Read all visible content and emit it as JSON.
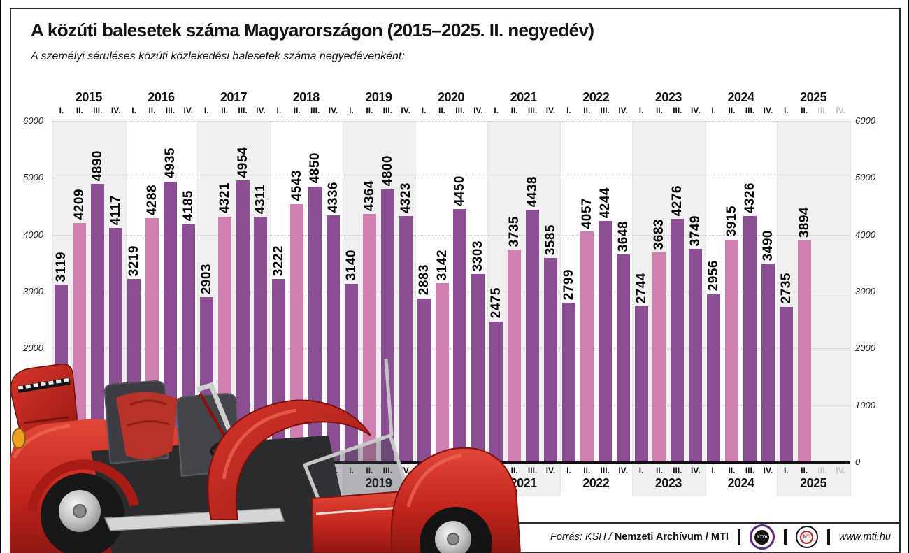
{
  "title": "A közúti balesetek száma Magyarországon (2015–2025. II. negyedév)",
  "subtitle": "A személyi sérüléses közúti közlekedési balesetek száma negyedévenként:",
  "chart_data": {
    "type": "bar",
    "title": "A közúti balesetek száma Magyarországon (2015–2025. II. negyedév)",
    "subtitle": "A személyi sérüléses közúti közlekedési balesetek száma negyedévenként:",
    "quarters": [
      "I.",
      "II.",
      "III.",
      "IV."
    ],
    "series": [
      {
        "year": "2015",
        "values": [
          3119,
          4209,
          4890,
          4117
        ]
      },
      {
        "year": "2016",
        "values": [
          3219,
          4288,
          4935,
          4185
        ]
      },
      {
        "year": "2017",
        "values": [
          2903,
          4321,
          4954,
          4311
        ]
      },
      {
        "year": "2018",
        "values": [
          3222,
          4543,
          4850,
          4336
        ]
      },
      {
        "year": "2019",
        "values": [
          3140,
          4364,
          4800,
          4323
        ]
      },
      {
        "year": "2020",
        "values": [
          2883,
          3142,
          4450,
          3303
        ]
      },
      {
        "year": "2021",
        "values": [
          2475,
          3735,
          4438,
          3585
        ]
      },
      {
        "year": "2022",
        "values": [
          2799,
          4057,
          4244,
          3648
        ]
      },
      {
        "year": "2023",
        "values": [
          2744,
          3683,
          4276,
          3749
        ]
      },
      {
        "year": "2024",
        "values": [
          2956,
          3915,
          4326,
          3490
        ]
      },
      {
        "year": "2025",
        "values": [
          2735,
          3894,
          null,
          null
        ]
      }
    ],
    "future_quarter_labels_grayed": {
      "year": "2025",
      "quarters": [
        "III.",
        "IV."
      ]
    },
    "ylim": [
      0,
      6000
    ],
    "yticks": [
      0,
      1000,
      2000,
      3000,
      4000,
      5000,
      6000
    ],
    "grid": "dotted horizontal lines each 1000, alternating year background bands",
    "highlight_quarter_index": 1,
    "colors": {
      "bar": "#8b4e92",
      "highlight_bar": "#d07fb1",
      "year_band": "#f1f0f1",
      "future_label": "#c6c6c6",
      "axis_line": "#111111"
    }
  },
  "footer": {
    "source_italic": "Forrás: KSH",
    "sep1": " / ",
    "source_bold1": "Nemzeti Archívum",
    "sep2": " / ",
    "source_bold2": "MTI",
    "mtva_logo_text": "MTVA",
    "mti_logo_text": "MTI",
    "website": "www.mti.hu"
  },
  "decoration": {
    "car_description": "crashed red Volkswagen Beetle cabrio photo cutout, bottom-left"
  }
}
